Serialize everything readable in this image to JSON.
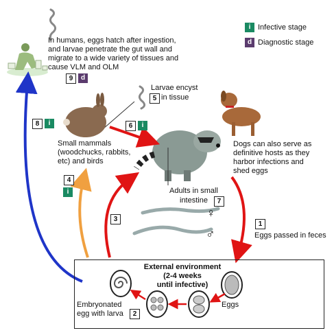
{
  "legend": {
    "infective_badge": "i",
    "infective_label": "Infective stage",
    "diagnostic_badge": "d",
    "diagnostic_label": "Diagnostic stage"
  },
  "humans": {
    "text": [
      "In humans, eggs hatch after ingestion,",
      "and larvae penetrate the gut wall and",
      "migrate to a wide variety of tissues and",
      "cause VLM and OLM"
    ],
    "step": "9",
    "badge": "d"
  },
  "larvae_encyst": {
    "text": [
      "Larvae encyst",
      "in tissue"
    ],
    "step": "5"
  },
  "small_mammals": {
    "text": [
      "Small mammals",
      "(woodchucks, rabbits,",
      "etc) and birds"
    ]
  },
  "dogs": {
    "text": [
      "Dogs can also serve as",
      "definitive hosts as they",
      "harbor infections and",
      "shed eggs"
    ]
  },
  "adults": {
    "text": [
      "Adults in small",
      "intestine"
    ],
    "step": "7",
    "female_symbol": "♀",
    "male_symbol": "♂"
  },
  "steps": {
    "s1": "1",
    "s1_label": "Eggs passed in feces",
    "s3": "3",
    "s4": "4",
    "s4_badge": "i",
    "s6": "6",
    "s6_badge": "i",
    "s8": "8",
    "s8_badge": "i",
    "s2": "2"
  },
  "environment": {
    "title": [
      "External environment",
      "(2-4 weeks",
      "until infective)"
    ],
    "eggs_label": "Eggs",
    "embryonated_label": [
      "Embryonated",
      "egg with larva"
    ]
  },
  "colors": {
    "red_arrow": "#e01414",
    "orange_arrow": "#f0a040",
    "blue_arrow": "#1f35c8",
    "infective": "#1a8a62",
    "diagnostic": "#5b3c6e"
  }
}
